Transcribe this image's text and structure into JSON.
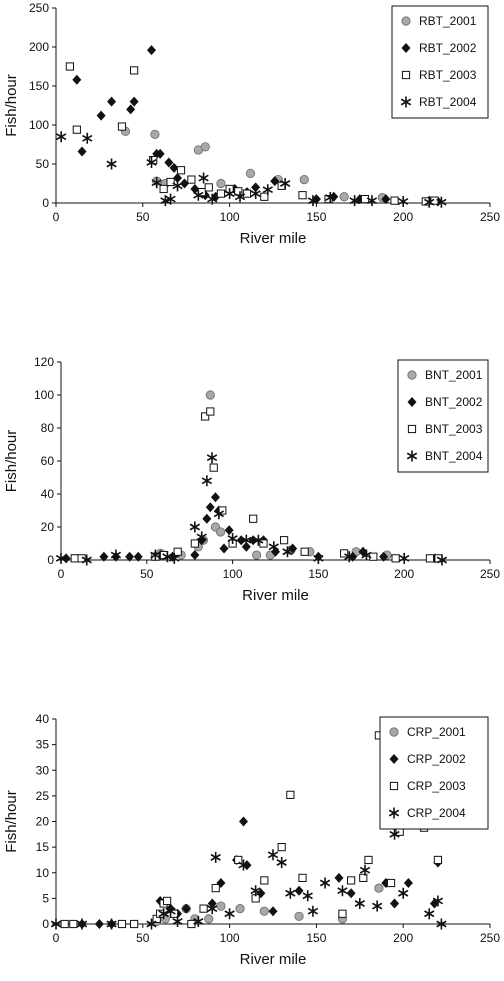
{
  "chart_data": [
    {
      "type": "scatter",
      "xlabel": "River mile",
      "ylabel": "Fish/hour",
      "xlim": [
        0,
        250
      ],
      "ylim": [
        0,
        250
      ],
      "xticks": [
        0,
        50,
        100,
        150,
        200,
        250
      ],
      "yticks": [
        0,
        50,
        100,
        150,
        200,
        250
      ],
      "legend_position": "top-right",
      "series": [
        {
          "name": "RBT_2001",
          "marker": "circle",
          "x": [
            40,
            57,
            58,
            63,
            82,
            86,
            95,
            112,
            128,
            143,
            166,
            188
          ],
          "y": [
            92,
            88,
            28,
            25,
            68,
            72,
            25,
            38,
            30,
            30,
            8,
            7
          ]
        },
        {
          "name": "RBT_2002",
          "marker": "diamond",
          "x": [
            12,
            15,
            26,
            32,
            43,
            45,
            55,
            58,
            60,
            65,
            68,
            70,
            74,
            80,
            86,
            92,
            103,
            110,
            115,
            126,
            150,
            160,
            175,
            190,
            215,
            220
          ],
          "y": [
            158,
            66,
            112,
            130,
            120,
            130,
            196,
            63,
            63,
            52,
            45,
            32,
            25,
            18,
            10,
            8,
            18,
            14,
            20,
            28,
            5,
            8,
            5,
            5,
            3,
            2
          ]
        },
        {
          "name": "RBT_2003",
          "marker": "square",
          "x": [
            8,
            12,
            38,
            45,
            56,
            62,
            66,
            72,
            78,
            84,
            88,
            95,
            100,
            105,
            110,
            120,
            130,
            142,
            157,
            178,
            195,
            213,
            218
          ],
          "y": [
            175,
            94,
            98,
            170,
            55,
            18,
            27,
            42,
            30,
            14,
            20,
            12,
            18,
            15,
            12,
            8,
            22,
            10,
            5,
            5,
            3,
            2,
            3
          ]
        },
        {
          "name": "RBT_2004",
          "marker": "star",
          "x": [
            3,
            18,
            32,
            55,
            58,
            63,
            66,
            70,
            82,
            85,
            90,
            100,
            106,
            115,
            122,
            132,
            148,
            158,
            172,
            182,
            200,
            215,
            222
          ],
          "y": [
            85,
            83,
            50,
            52,
            26,
            3,
            5,
            22,
            10,
            32,
            5,
            12,
            8,
            12,
            17,
            25,
            3,
            7,
            3,
            3,
            2,
            1,
            1
          ]
        }
      ]
    },
    {
      "type": "scatter",
      "xlabel": "River mile",
      "ylabel": "Fish/hour",
      "xlim": [
        0,
        250
      ],
      "ylim": [
        0,
        120
      ],
      "xticks": [
        0,
        50,
        100,
        150,
        200,
        250
      ],
      "yticks": [
        0,
        20,
        40,
        60,
        80,
        100,
        120
      ],
      "legend_position": "top-right",
      "series": [
        {
          "name": "BNT_2001",
          "marker": "circle",
          "x": [
            58,
            70,
            80,
            83,
            87,
            90,
            93,
            114,
            122,
            134,
            145,
            172,
            190
          ],
          "y": [
            4,
            3,
            8,
            12,
            100,
            20,
            17,
            3,
            3,
            6,
            5,
            5,
            3
          ]
        },
        {
          "name": "BNT_2002",
          "marker": "diamond",
          "x": [
            3,
            25,
            32,
            40,
            45,
            58,
            65,
            78,
            82,
            85,
            87,
            90,
            92,
            95,
            98,
            105,
            108,
            112,
            118,
            125,
            135,
            150,
            170,
            176,
            188,
            218
          ],
          "y": [
            1,
            2,
            2,
            2,
            2,
            3,
            2,
            3,
            12,
            25,
            32,
            38,
            30,
            7,
            18,
            12,
            8,
            12,
            12,
            5,
            7,
            2,
            2,
            5,
            2,
            1
          ]
        },
        {
          "name": "BNT_2003",
          "marker": "square",
          "x": [
            8,
            12,
            55,
            60,
            68,
            78,
            84,
            87,
            89,
            94,
            100,
            112,
            118,
            130,
            142,
            165,
            182,
            195,
            215,
            220
          ],
          "y": [
            1,
            1,
            2,
            3,
            5,
            10,
            87,
            90,
            56,
            30,
            10,
            25,
            10,
            12,
            5,
            4,
            2,
            1,
            1,
            1
          ]
        },
        {
          "name": "BNT_2004",
          "marker": "star",
          "x": [
            0,
            15,
            32,
            55,
            62,
            66,
            78,
            82,
            85,
            88,
            92,
            100,
            108,
            115,
            124,
            132,
            150,
            168,
            178,
            200,
            222
          ],
          "y": [
            1,
            0,
            3,
            3,
            2,
            1,
            20,
            14,
            48,
            62,
            28,
            13,
            12,
            12,
            8,
            5,
            1,
            2,
            3,
            1,
            0
          ]
        }
      ]
    },
    {
      "type": "scatter",
      "xlabel": "River mile",
      "ylabel": "Fish/hour",
      "xlim": [
        0,
        250
      ],
      "ylim": [
        0,
        40
      ],
      "xticks": [
        0,
        50,
        100,
        150,
        200,
        250
      ],
      "yticks": [
        0,
        5,
        10,
        15,
        20,
        25,
        30,
        35,
        40
      ],
      "legend_position": "top-right",
      "series": [
        {
          "name": "CRP_2001",
          "marker": "circle",
          "x": [
            58,
            63,
            75,
            80,
            88,
            95,
            106,
            120,
            140,
            165,
            186
          ],
          "y": [
            0.5,
            1,
            3,
            1,
            1,
            3.5,
            3,
            2.5,
            1.5,
            1,
            7
          ]
        },
        {
          "name": "CRP_2002",
          "marker": "diamond",
          "x": [
            15,
            25,
            32,
            60,
            66,
            70,
            75,
            90,
            95,
            104,
            108,
            110,
            118,
            125,
            140,
            163,
            170,
            190,
            195,
            203,
            218,
            220
          ],
          "y": [
            0,
            0,
            0,
            4.5,
            3,
            2,
            3,
            4,
            8,
            12.5,
            20,
            11.5,
            6,
            2.5,
            6.5,
            9,
            6,
            8,
            4,
            8,
            4,
            12
          ]
        },
        {
          "name": "CRP_2003",
          "marker": "square",
          "x": [
            5,
            10,
            38,
            45,
            58,
            60,
            62,
            64,
            68,
            78,
            85,
            92,
            105,
            115,
            120,
            130,
            135,
            142,
            165,
            170,
            177,
            180,
            186,
            193,
            198,
            212,
            220
          ],
          "y": [
            0,
            0,
            0,
            0,
            1,
            2,
            4,
            4.5,
            2,
            0,
            3,
            7,
            12.5,
            5,
            8.5,
            15,
            25.2,
            9,
            2,
            8.5,
            9,
            12.5,
            36.8,
            8,
            18,
            18.8,
            12.5
          ]
        },
        {
          "name": "CRP_2004",
          "marker": "star",
          "x": [
            0,
            15,
            32,
            55,
            62,
            66,
            70,
            82,
            90,
            92,
            100,
            108,
            115,
            125,
            130,
            135,
            145,
            148,
            155,
            165,
            175,
            178,
            185,
            195,
            200,
            215,
            220,
            222
          ],
          "y": [
            0,
            0,
            0,
            0,
            2,
            2.5,
            0.5,
            0.5,
            3,
            13,
            2,
            11.5,
            6.5,
            13.5,
            12,
            6,
            5.5,
            2.5,
            8,
            6.5,
            4,
            10.5,
            3.5,
            17.5,
            6,
            2,
            4.5,
            0
          ]
        }
      ]
    }
  ]
}
